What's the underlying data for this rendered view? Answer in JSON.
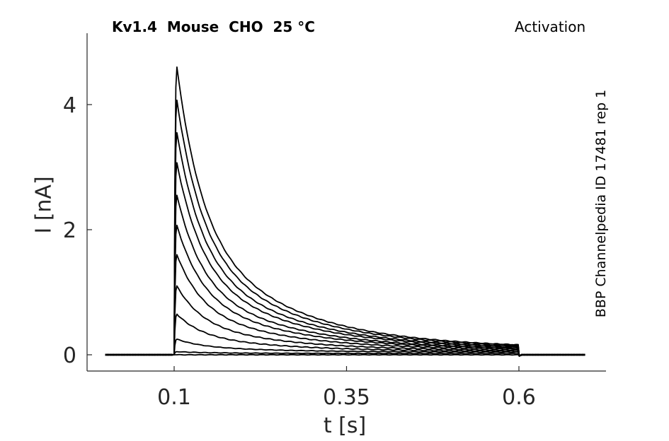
{
  "chart_data": {
    "type": "line",
    "title": "Kv1.4  Mouse  CHO  25 °C",
    "protocol": "Activation",
    "side_label": "BBP Channelpedia ID 17481 rep 1",
    "xlabel": "t [s]",
    "ylabel": "I [nA]",
    "xlim": [
      -0.0,
      0.75
    ],
    "ylim": [
      -0.25,
      5.2
    ],
    "xticks": [
      0.1,
      0.35,
      0.6
    ],
    "xtick_labels": [
      "0.1",
      "0.35",
      "0.6"
    ],
    "yticks": [
      0,
      2,
      4
    ],
    "ytick_labels": [
      "0",
      "2",
      "4"
    ],
    "grid": false,
    "step_onset": 0.1,
    "step_offset": 0.6,
    "trace_end": 0.7,
    "series": [
      {
        "peak": 4.6,
        "end_value": 0.1
      },
      {
        "peak": 4.07,
        "end_value": 0.1
      },
      {
        "peak": 3.55,
        "end_value": 0.09
      },
      {
        "peak": 3.07,
        "end_value": 0.09
      },
      {
        "peak": 2.55,
        "end_value": 0.08
      },
      {
        "peak": 2.07,
        "end_value": 0.08
      },
      {
        "peak": 1.6,
        "end_value": 0.07
      },
      {
        "peak": 1.1,
        "end_value": 0.06
      },
      {
        "peak": 0.65,
        "end_value": 0.05
      },
      {
        "peak": 0.25,
        "end_value": 0.04
      },
      {
        "peak": 0.05,
        "end_value": 0.02
      },
      {
        "peak": 0.0,
        "end_value": 0.0
      }
    ],
    "colors": {
      "trace": "#000000",
      "axis": "#262626"
    }
  }
}
